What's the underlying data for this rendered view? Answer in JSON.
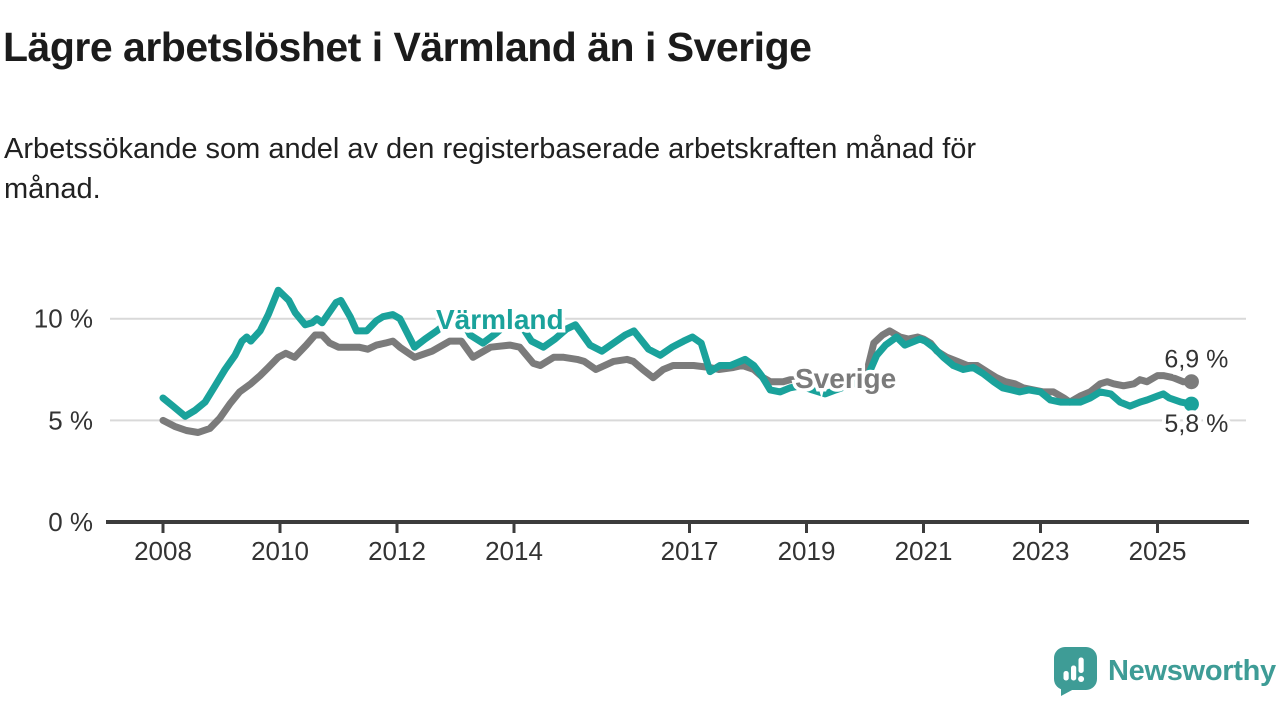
{
  "header": {
    "title": "Lägre arbetslöshet i Värmland än i Sverige",
    "subtitle_line1": "Arbetssökande som andel av den registerbaserade arbetskraften månad för",
    "subtitle_line2": "månad."
  },
  "chart_data": {
    "type": "line",
    "title": "Lägre arbetslöshet i Värmland än i Sverige",
    "xlabel": "",
    "ylabel": "",
    "unit": "%",
    "grid": "horizontal-only",
    "legend_position": "inline-labels-on-lines",
    "ylim": [
      0,
      12.6
    ],
    "x_axis": {
      "ticks": [
        2008,
        2010,
        2012,
        2014,
        2017,
        2019,
        2021,
        2023,
        2025
      ]
    },
    "y_axis": {
      "ticks": [
        {
          "value": 0,
          "label": "0 %"
        },
        {
          "value": 5,
          "label": "5 %"
        },
        {
          "value": 10,
          "label": "10 %"
        }
      ]
    },
    "colors": {
      "varmland": "#1AA29B",
      "sverige": "#7B7B7B",
      "axis": "#3C3C3C",
      "gridline": "#D9D9D9"
    },
    "series": [
      {
        "name": "Värmland",
        "color": "#1AA29B",
        "end_label": "5,8 %",
        "end_label_position": "below",
        "latest_value": 5.8,
        "points": [
          [
            2008.0,
            6.1
          ],
          [
            2008.17,
            5.7
          ],
          [
            2008.38,
            5.2
          ],
          [
            2008.55,
            5.5
          ],
          [
            2008.72,
            5.9
          ],
          [
            2008.89,
            6.7
          ],
          [
            2009.06,
            7.5
          ],
          [
            2009.23,
            8.2
          ],
          [
            2009.35,
            8.9
          ],
          [
            2009.43,
            9.1
          ],
          [
            2009.5,
            8.9
          ],
          [
            2009.66,
            9.4
          ],
          [
            2009.8,
            10.2
          ],
          [
            2009.97,
            11.4
          ],
          [
            2010.15,
            10.9
          ],
          [
            2010.26,
            10.3
          ],
          [
            2010.43,
            9.7
          ],
          [
            2010.55,
            9.8
          ],
          [
            2010.63,
            10.0
          ],
          [
            2010.72,
            9.8
          ],
          [
            2010.96,
            10.8
          ],
          [
            2011.04,
            10.9
          ],
          [
            2011.2,
            10.1
          ],
          [
            2011.31,
            9.4
          ],
          [
            2011.48,
            9.4
          ],
          [
            2011.65,
            9.9
          ],
          [
            2011.76,
            10.1
          ],
          [
            2011.93,
            10.2
          ],
          [
            2012.05,
            10.0
          ],
          [
            2012.3,
            8.6
          ],
          [
            2012.48,
            9.0
          ],
          [
            2012.68,
            9.4
          ],
          [
            2012.9,
            9.9
          ],
          [
            2013.05,
            10.3
          ],
          [
            2013.25,
            9.2
          ],
          [
            2013.47,
            8.8
          ],
          [
            2013.7,
            9.3
          ],
          [
            2013.9,
            9.8
          ],
          [
            2014.05,
            10.0
          ],
          [
            2014.3,
            8.9
          ],
          [
            2014.5,
            8.6
          ],
          [
            2014.7,
            9.0
          ],
          [
            2014.9,
            9.5
          ],
          [
            2015.05,
            9.7
          ],
          [
            2015.3,
            8.7
          ],
          [
            2015.5,
            8.4
          ],
          [
            2015.7,
            8.8
          ],
          [
            2015.9,
            9.2
          ],
          [
            2016.05,
            9.4
          ],
          [
            2016.3,
            8.5
          ],
          [
            2016.5,
            8.2
          ],
          [
            2016.7,
            8.6
          ],
          [
            2016.9,
            8.9
          ],
          [
            2017.05,
            9.1
          ],
          [
            2017.2,
            8.8
          ],
          [
            2017.35,
            7.4
          ],
          [
            2017.52,
            7.7
          ],
          [
            2017.7,
            7.7
          ],
          [
            2017.95,
            8.0
          ],
          [
            2018.1,
            7.7
          ],
          [
            2018.23,
            7.2
          ],
          [
            2018.38,
            6.5
          ],
          [
            2018.55,
            6.4
          ],
          [
            2018.72,
            6.6
          ],
          [
            2018.9,
            6.7
          ],
          [
            2019.1,
            6.5
          ],
          [
            2019.32,
            6.3
          ],
          [
            2019.5,
            6.5
          ],
          [
            2019.7,
            6.7
          ],
          [
            2019.9,
            6.9
          ],
          [
            2020.05,
            7.2
          ],
          [
            2020.2,
            8.2
          ],
          [
            2020.35,
            8.7
          ],
          [
            2020.54,
            9.1
          ],
          [
            2020.68,
            8.7
          ],
          [
            2020.94,
            9.0
          ],
          [
            2021.03,
            8.9
          ],
          [
            2021.17,
            8.6
          ],
          [
            2021.34,
            8.1
          ],
          [
            2021.51,
            7.7
          ],
          [
            2021.68,
            7.5
          ],
          [
            2021.85,
            7.6
          ],
          [
            2022.02,
            7.3
          ],
          [
            2022.2,
            6.9
          ],
          [
            2022.35,
            6.6
          ],
          [
            2022.5,
            6.5
          ],
          [
            2022.64,
            6.4
          ],
          [
            2022.8,
            6.5
          ],
          [
            2023.0,
            6.4
          ],
          [
            2023.17,
            6.0
          ],
          [
            2023.34,
            5.9
          ],
          [
            2023.5,
            5.9
          ],
          [
            2023.68,
            5.9
          ],
          [
            2023.85,
            6.1
          ],
          [
            2024.02,
            6.4
          ],
          [
            2024.2,
            6.3
          ],
          [
            2024.36,
            5.9
          ],
          [
            2024.53,
            5.7
          ],
          [
            2024.7,
            5.9
          ],
          [
            2024.82,
            6.0
          ],
          [
            2025.0,
            6.2
          ],
          [
            2025.1,
            6.3
          ],
          [
            2025.2,
            6.1
          ],
          [
            2025.4,
            5.9
          ],
          [
            2025.58,
            5.8
          ]
        ]
      },
      {
        "name": "Sverige",
        "color": "#7B7B7B",
        "end_label": "6,9 %",
        "end_label_position": "above",
        "latest_value": 6.9,
        "points": [
          [
            2008.0,
            5.0
          ],
          [
            2008.2,
            4.7
          ],
          [
            2008.4,
            4.5
          ],
          [
            2008.6,
            4.4
          ],
          [
            2008.8,
            4.6
          ],
          [
            2008.97,
            5.1
          ],
          [
            2009.14,
            5.8
          ],
          [
            2009.31,
            6.4
          ],
          [
            2009.5,
            6.8
          ],
          [
            2009.66,
            7.2
          ],
          [
            2009.8,
            7.6
          ],
          [
            2009.97,
            8.1
          ],
          [
            2010.1,
            8.3
          ],
          [
            2010.25,
            8.1
          ],
          [
            2010.45,
            8.7
          ],
          [
            2010.6,
            9.2
          ],
          [
            2010.72,
            9.2
          ],
          [
            2010.85,
            8.8
          ],
          [
            2011.0,
            8.6
          ],
          [
            2011.2,
            8.6
          ],
          [
            2011.35,
            8.6
          ],
          [
            2011.5,
            8.5
          ],
          [
            2011.65,
            8.7
          ],
          [
            2011.8,
            8.8
          ],
          [
            2011.93,
            8.9
          ],
          [
            2012.05,
            8.6
          ],
          [
            2012.3,
            8.1
          ],
          [
            2012.6,
            8.4
          ],
          [
            2012.9,
            8.9
          ],
          [
            2013.1,
            8.9
          ],
          [
            2013.3,
            8.1
          ],
          [
            2013.6,
            8.6
          ],
          [
            2013.93,
            8.7
          ],
          [
            2014.1,
            8.6
          ],
          [
            2014.33,
            7.8
          ],
          [
            2014.45,
            7.7
          ],
          [
            2014.68,
            8.1
          ],
          [
            2014.85,
            8.1
          ],
          [
            2015.08,
            8.0
          ],
          [
            2015.2,
            7.9
          ],
          [
            2015.4,
            7.5
          ],
          [
            2015.7,
            7.9
          ],
          [
            2015.93,
            8.0
          ],
          [
            2016.04,
            7.9
          ],
          [
            2016.2,
            7.5
          ],
          [
            2016.38,
            7.1
          ],
          [
            2016.55,
            7.5
          ],
          [
            2016.72,
            7.7
          ],
          [
            2016.9,
            7.7
          ],
          [
            2017.07,
            7.7
          ],
          [
            2017.35,
            7.6
          ],
          [
            2017.5,
            7.5
          ],
          [
            2017.75,
            7.6
          ],
          [
            2017.9,
            7.7
          ],
          [
            2018.1,
            7.5
          ],
          [
            2018.26,
            7.1
          ],
          [
            2018.38,
            6.9
          ],
          [
            2018.6,
            6.9
          ],
          [
            2018.72,
            7.0
          ],
          [
            2018.9,
            7.0
          ],
          [
            2019.2,
            6.9
          ],
          [
            2019.5,
            6.9
          ],
          [
            2019.8,
            7.0
          ],
          [
            2020.03,
            7.4
          ],
          [
            2020.15,
            8.8
          ],
          [
            2020.3,
            9.2
          ],
          [
            2020.42,
            9.4
          ],
          [
            2020.6,
            9.1
          ],
          [
            2020.74,
            9.0
          ],
          [
            2020.9,
            9.1
          ],
          [
            2021.0,
            9.0
          ],
          [
            2021.12,
            8.8
          ],
          [
            2021.23,
            8.4
          ],
          [
            2021.4,
            8.1
          ],
          [
            2021.58,
            7.9
          ],
          [
            2021.75,
            7.7
          ],
          [
            2021.92,
            7.7
          ],
          [
            2022.08,
            7.4
          ],
          [
            2022.25,
            7.1
          ],
          [
            2022.4,
            6.9
          ],
          [
            2022.56,
            6.8
          ],
          [
            2022.7,
            6.6
          ],
          [
            2022.88,
            6.5
          ],
          [
            2023.05,
            6.4
          ],
          [
            2023.22,
            6.4
          ],
          [
            2023.4,
            6.1
          ],
          [
            2023.5,
            5.9
          ],
          [
            2023.68,
            6.2
          ],
          [
            2023.85,
            6.4
          ],
          [
            2024.02,
            6.8
          ],
          [
            2024.14,
            6.9
          ],
          [
            2024.25,
            6.8
          ],
          [
            2024.42,
            6.7
          ],
          [
            2024.6,
            6.8
          ],
          [
            2024.7,
            7.0
          ],
          [
            2024.82,
            6.9
          ],
          [
            2025.0,
            7.2
          ],
          [
            2025.1,
            7.2
          ],
          [
            2025.27,
            7.1
          ],
          [
            2025.44,
            6.9
          ],
          [
            2025.58,
            6.9
          ]
        ]
      }
    ]
  },
  "footer": {
    "brand": "Newsworthy"
  }
}
